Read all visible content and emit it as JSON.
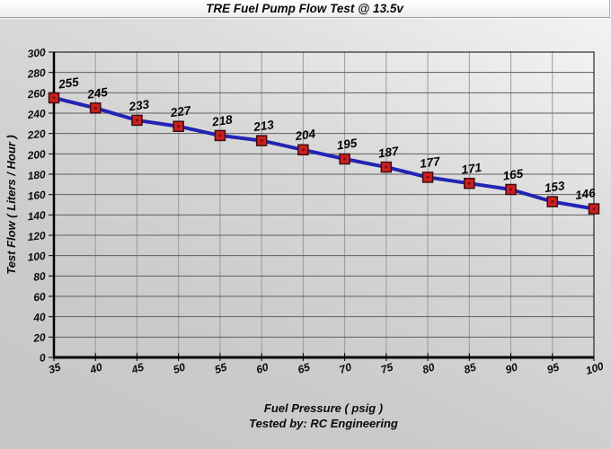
{
  "window": {
    "title": "TRE Fuel Pump Flow Test @ 13.5v"
  },
  "chart_data": {
    "type": "line",
    "title": "TRE Fuel Pump Flow Test @ 13.5v",
    "x": [
      35,
      40,
      45,
      50,
      55,
      60,
      65,
      70,
      75,
      80,
      85,
      90,
      95,
      100
    ],
    "series": [
      {
        "name": "Test Flow",
        "values": [
          255,
          245,
          233,
          227,
          218,
          213,
          204,
          195,
          187,
          177,
          171,
          165,
          153,
          146
        ]
      }
    ],
    "data_labels": true,
    "xlabel": "Fuel Pressure ( psig )",
    "ylabel": "Test Flow ( Liters / Hour )",
    "footer": "Tested by: RC Engineering",
    "xlim": [
      35,
      100
    ],
    "ylim": [
      0,
      300
    ],
    "x_tick_step": 5,
    "y_tick_step": 20,
    "grid": true,
    "legend": "none",
    "colors": {
      "line": "#2323b4",
      "marker_fill": "#cc2020",
      "marker_inner": "#7c0f0f",
      "marker_border": "#3d0d0d",
      "grid_h": "#5f5f5f",
      "grid_v": "#9a9a9a",
      "axis": "#000000",
      "text": "#0a0a0a",
      "page_bg": "#c9c9c9",
      "titlebar_bg": "#f7f7f7"
    }
  }
}
